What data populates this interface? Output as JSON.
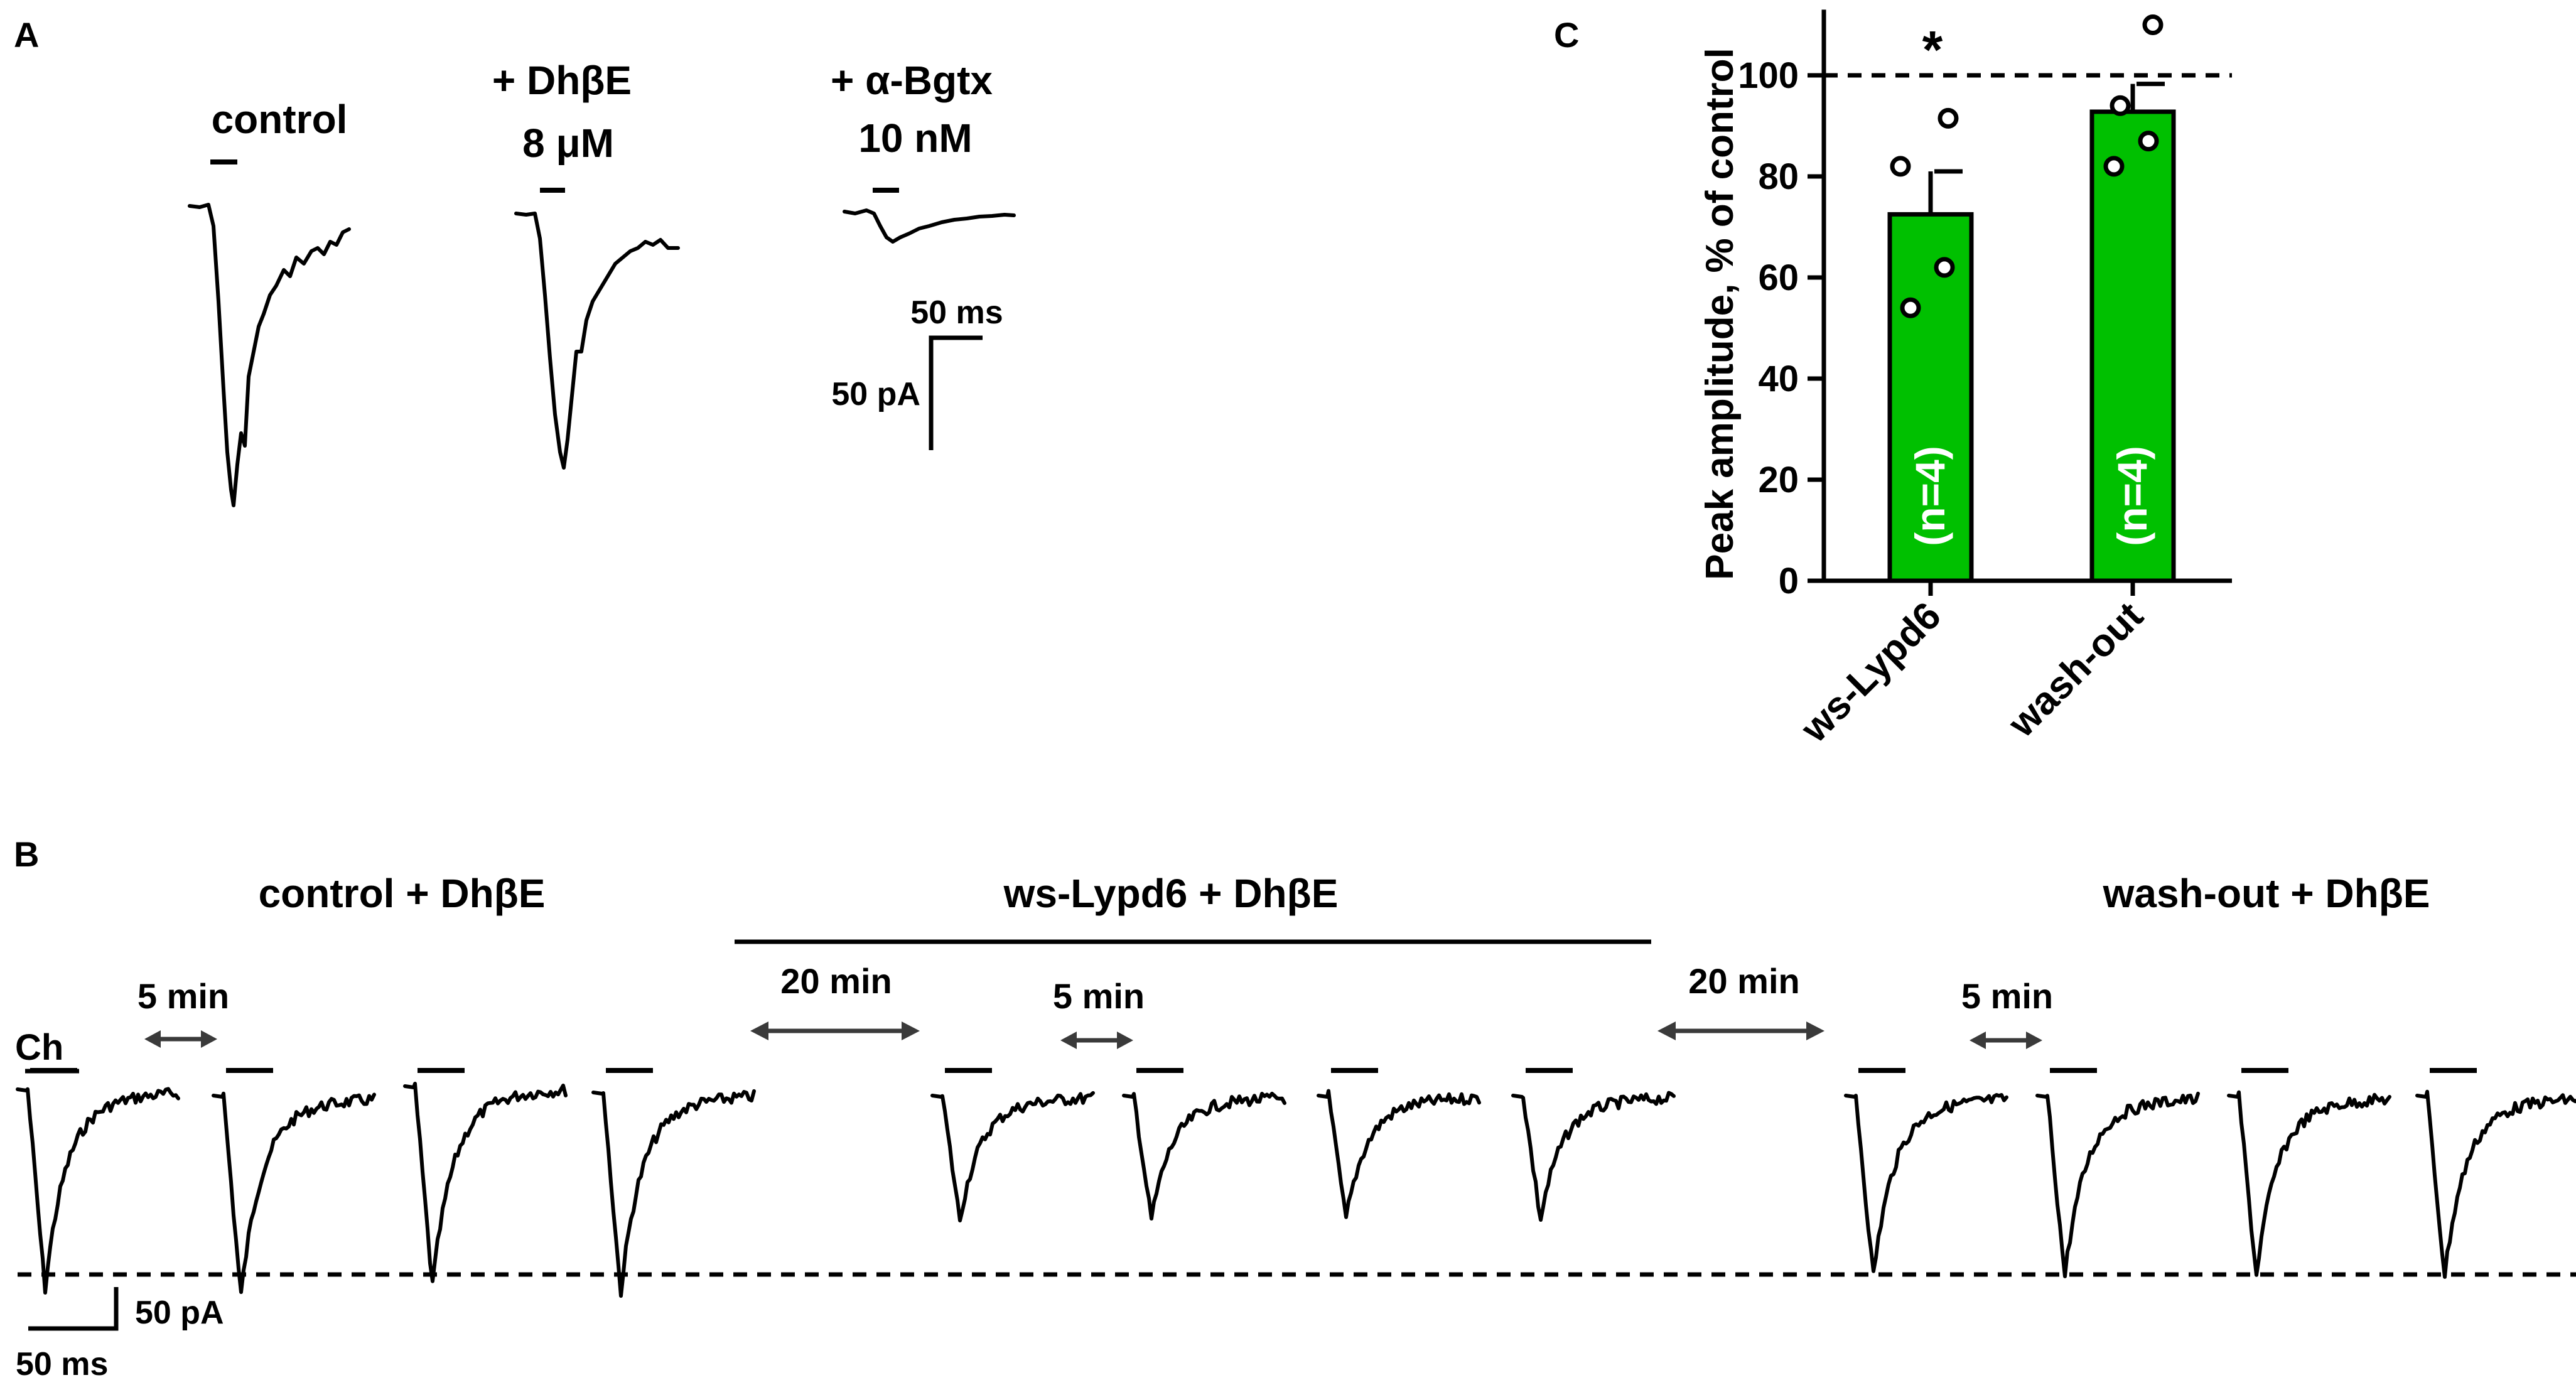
{
  "panel_a": {
    "label": "A",
    "conditions": [
      {
        "line1": "control",
        "line2": ""
      },
      {
        "line1": "+ DhβE",
        "line2": "8 μM"
      },
      {
        "line1": "+ α-Bgtx",
        "line2": "10 nM"
      }
    ],
    "scale_time": "50 ms",
    "scale_current": "50 pA"
  },
  "panel_b": {
    "label": "B",
    "groups": [
      "control + DhβE",
      "ws-Lypd6 + DhβE",
      "wash-out + DhβE"
    ],
    "stimulus_label": "Ch",
    "interval_labels": [
      "5 min",
      "20 min",
      "5 min",
      "20 min",
      "5 min"
    ],
    "scale_current": "50 pA",
    "scale_time": "50 ms",
    "trace_peaks_rel": [
      1.0,
      1.0,
      1.0,
      1.0,
      0.62,
      0.62,
      0.62,
      0.62,
      0.9,
      0.9,
      0.9,
      0.9
    ]
  },
  "chart_data": {
    "type": "bar",
    "panel_label": "C",
    "categories": [
      "ws-Lypd6",
      "wash-out"
    ],
    "values": [
      72.5,
      92.8
    ],
    "errors": [
      8.5,
      5.5
    ],
    "points": [
      [
        82,
        91.5,
        62,
        54
      ],
      [
        94,
        110,
        87,
        82
      ]
    ],
    "n_labels": [
      "(n=4)",
      "(n=4)"
    ],
    "significance": [
      "*",
      ""
    ],
    "reference_line": 100,
    "ylabel": "Peak amplitude, % of control",
    "ylim": [
      0,
      113
    ],
    "yticks": [
      0,
      20,
      40,
      60,
      80,
      100
    ],
    "bar_color": "#00c000"
  }
}
